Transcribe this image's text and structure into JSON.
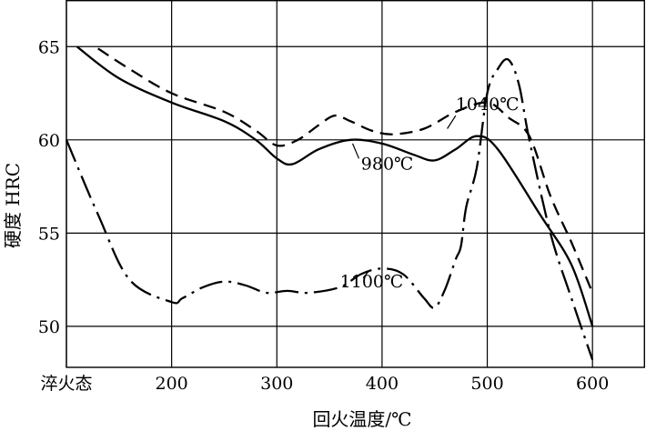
{
  "chart_data": {
    "type": "line",
    "xlabel": "回火温度/℃",
    "ylabel": "硬度 HRC",
    "x_ticks": [
      "淬火态",
      "200",
      "300",
      "400",
      "500",
      "600"
    ],
    "y_ticks": [
      50,
      55,
      60,
      65
    ],
    "xlim": [
      100,
      650
    ],
    "ylim": [
      47.8,
      67.5
    ],
    "grid": true,
    "series": [
      {
        "name": "980℃",
        "style": "solid",
        "x": [
          110,
          150,
          200,
          250,
          280,
          300,
          315,
          340,
          370,
          400,
          430,
          450,
          470,
          490,
          510,
          550,
          580,
          600
        ],
        "y": [
          65,
          63.3,
          62,
          61,
          60,
          59,
          58.7,
          59.5,
          60,
          59.8,
          59.2,
          58.9,
          59.5,
          60.2,
          59.5,
          56,
          53.3,
          50
        ]
      },
      {
        "name": "1040℃",
        "style": "dashed",
        "x": [
          130,
          160,
          200,
          250,
          280,
          300,
          320,
          340,
          355,
          370,
          390,
          410,
          440,
          470,
          500,
          520,
          540,
          560,
          580,
          600
        ],
        "y": [
          64.9,
          63.8,
          62.5,
          61.5,
          60.5,
          59.7,
          60,
          60.8,
          61.3,
          61,
          60.5,
          60.3,
          60.6,
          61.5,
          62,
          61.2,
          60.2,
          57,
          54.5,
          51.8
        ]
      },
      {
        "name": "1100℃",
        "style": "dash-dot",
        "x": [
          100,
          130,
          160,
          200,
          210,
          230,
          250,
          270,
          290,
          310,
          330,
          360,
          380,
          400,
          420,
          440,
          450,
          460,
          470,
          475,
          480,
          490,
          500,
          510,
          520,
          530,
          540,
          560,
          580,
          600
        ],
        "y": [
          60,
          56,
          52.5,
          51.3,
          51.5,
          52.1,
          52.4,
          52.2,
          51.8,
          51.9,
          51.8,
          52.1,
          52.8,
          53.1,
          52.8,
          51.5,
          51,
          52,
          53.6,
          54.3,
          56.4,
          58.5,
          62.5,
          63.8,
          64.3,
          63,
          60,
          55,
          51.5,
          48.2
        ]
      }
    ],
    "annotations": [
      {
        "label": "1040℃",
        "x": 470,
        "y": 61.6
      },
      {
        "label": "980℃",
        "x": 380,
        "y": 58.4
      },
      {
        "label": "1100℃",
        "x": 360,
        "y": 52.1
      }
    ]
  }
}
